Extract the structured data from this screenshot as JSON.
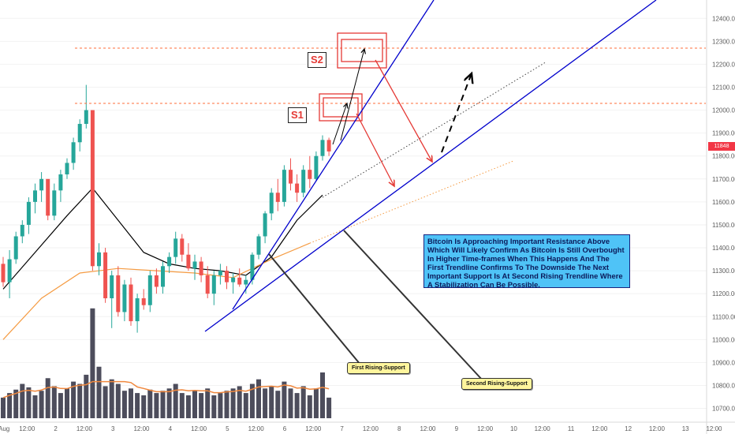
{
  "chart_data": {
    "type": "candlestick",
    "title": "",
    "y_axis": {
      "ticks": [
        12400,
        12300,
        12200,
        12100,
        12000,
        11900,
        11800,
        11700,
        11600,
        11500,
        11400,
        11300,
        11200,
        11100,
        11000,
        10900,
        10800,
        10700
      ],
      "tick_labels": [
        "12400.00",
        "12300.00",
        "12200.00",
        "12100.00",
        "12000.00",
        "11900.00",
        "11800.00",
        "11700.00",
        "11600.00",
        "11500.00",
        "11400.00",
        "11300.00",
        "11200.00",
        "11100.00",
        "11000.00",
        "10900.00",
        "10800.00",
        "10700.00"
      ],
      "range": [
        10640,
        12480
      ]
    },
    "x_axis": {
      "tick_labels": [
        "Aug",
        "12:00",
        "2",
        "12:00",
        "3",
        "12:00",
        "4",
        "12:00",
        "5",
        "12:00",
        "6",
        "12:00",
        "7",
        "12:00",
        "8",
        "12:00",
        "9",
        "12:00",
        "10",
        "12:00",
        "11",
        "12:00",
        "12",
        "12:00",
        "13",
        "12:00"
      ]
    },
    "candles": [
      [
        11330,
        11360,
        11230,
        11250
      ],
      [
        11250,
        11390,
        11180,
        11350
      ],
      [
        11350,
        11470,
        11330,
        11450
      ],
      [
        11450,
        11520,
        11420,
        11500
      ],
      [
        11500,
        11620,
        11460,
        11600
      ],
      [
        11600,
        11680,
        11550,
        11650
      ],
      [
        11650,
        11730,
        11600,
        11700
      ],
      [
        11700,
        11690,
        11520,
        11540
      ],
      [
        11540,
        11680,
        11520,
        11650
      ],
      [
        11650,
        11740,
        11600,
        11720
      ],
      [
        11720,
        11790,
        11700,
        11770
      ],
      [
        11770,
        11880,
        11740,
        11860
      ],
      [
        11860,
        11960,
        11820,
        11940
      ],
      [
        11940,
        12110,
        11920,
        12000
      ],
      [
        12000,
        12000,
        11300,
        11320
      ],
      [
        11320,
        11420,
        11280,
        11380
      ],
      [
        11380,
        11400,
        11160,
        11180
      ],
      [
        11180,
        11300,
        11050,
        11280
      ],
      [
        11280,
        11320,
        11100,
        11120
      ],
      [
        11120,
        11260,
        11080,
        11240
      ],
      [
        11240,
        11270,
        11060,
        11080
      ],
      [
        11080,
        11200,
        11030,
        11180
      ],
      [
        11180,
        11220,
        11130,
        11150
      ],
      [
        11150,
        11300,
        11120,
        11280
      ],
      [
        11280,
        11310,
        11200,
        11230
      ],
      [
        11230,
        11340,
        11200,
        11320
      ],
      [
        11320,
        11380,
        11290,
        11360
      ],
      [
        11360,
        11470,
        11330,
        11440
      ],
      [
        11440,
        11460,
        11340,
        11370
      ],
      [
        11370,
        11420,
        11300,
        11310
      ],
      [
        11310,
        11370,
        11260,
        11340
      ],
      [
        11340,
        11360,
        11250,
        11280
      ],
      [
        11280,
        11320,
        11180,
        11200
      ],
      [
        11200,
        11300,
        11150,
        11280
      ],
      [
        11280,
        11330,
        11240,
        11300
      ],
      [
        11300,
        11320,
        11220,
        11250
      ],
      [
        11250,
        11290,
        11200,
        11270
      ],
      [
        11270,
        11310,
        11230,
        11240
      ],
      [
        11240,
        11280,
        11200,
        11260
      ],
      [
        11260,
        11380,
        11240,
        11370
      ],
      [
        11370,
        11460,
        11350,
        11450
      ],
      [
        11450,
        11560,
        11420,
        11550
      ],
      [
        11550,
        11660,
        11520,
        11640
      ],
      [
        11640,
        11700,
        11560,
        11600
      ],
      [
        11600,
        11760,
        11580,
        11740
      ],
      [
        11740,
        11790,
        11650,
        11680
      ],
      [
        11680,
        11720,
        11600,
        11640
      ],
      [
        11640,
        11760,
        11620,
        11740
      ],
      [
        11740,
        11800,
        11660,
        11700
      ],
      [
        11700,
        11820,
        11690,
        11800
      ],
      [
        11800,
        11890,
        11780,
        11870
      ],
      [
        11870,
        11880,
        11800,
        11820
      ]
    ],
    "volumes": [
      18,
      22,
      25,
      30,
      27,
      20,
      24,
      35,
      28,
      22,
      26,
      32,
      30,
      38,
      96,
      45,
      28,
      34,
      30,
      24,
      26,
      22,
      20,
      25,
      22,
      24,
      26,
      30,
      22,
      20,
      24,
      22,
      26,
      20,
      22,
      24,
      26,
      28,
      22,
      30,
      34,
      26,
      28,
      24,
      32,
      26,
      22,
      28,
      20,
      26,
      40,
      18
    ],
    "series": [
      {
        "type": "line",
        "style": "solid",
        "color": "#000000",
        "points": [
          [
            0,
            11220
          ],
          [
            5,
            11380
          ],
          [
            10,
            11540
          ],
          [
            14,
            11660
          ],
          [
            18,
            11520
          ],
          [
            22,
            11380
          ],
          [
            26,
            11330
          ],
          [
            30,
            11310
          ],
          [
            34,
            11300
          ],
          [
            38,
            11280
          ],
          [
            42,
            11360
          ],
          [
            46,
            11520
          ],
          [
            50,
            11630
          ]
        ]
      },
      {
        "type": "line",
        "style": "solid",
        "color": "#f59b42",
        "points": [
          [
            0,
            11000
          ],
          [
            6,
            11180
          ],
          [
            12,
            11290
          ],
          [
            18,
            11310
          ],
          [
            24,
            11300
          ],
          [
            30,
            11290
          ],
          [
            36,
            11270
          ],
          [
            42,
            11350
          ],
          [
            48,
            11420
          ]
        ]
      },
      {
        "type": "line",
        "style": "dotted",
        "color": "#f59b42",
        "points": [
          [
            48,
            11420
          ],
          [
            80,
            11780
          ]
        ]
      },
      {
        "type": "line",
        "style": "dotted",
        "color": "#444444",
        "points": [
          [
            50,
            11620
          ],
          [
            85,
            12210
          ]
        ]
      }
    ],
    "resistance_levels": [
      {
        "label": "S1",
        "price": 12000
      },
      {
        "label": "S2",
        "price": 12235
      }
    ],
    "current_price_label": "11848"
  },
  "annotations": {
    "main_note": "Bitcoin Is Approaching Important Resistance Above Which Will Likely Confirm As Bitcoin Is Still Overbought In Higher Time-frames When This Happens And The First Trendline Confirms To The Downside The Next Important Support Is At Second Rising Trendline Where A Stabilization Can Be Possible.",
    "first_support": "First Rising-Support",
    "second_support": "Second Rising-Support",
    "s1": "S1",
    "s2": "S2"
  },
  "colors": {
    "up": "#26a69a",
    "down": "#ef5350",
    "trendline": "#0000cc",
    "arrow": "#e53935",
    "resistance": "#ff6d3a",
    "volume": "#3a3a4a"
  }
}
